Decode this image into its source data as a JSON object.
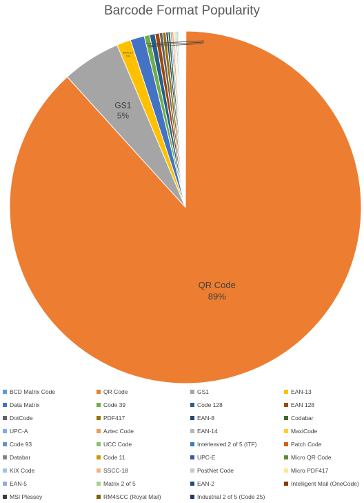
{
  "chart_data": {
    "type": "pie",
    "title": "Barcode Format Popularity",
    "slices": [
      {
        "label": "BCD Matrix Code",
        "value": 0.05,
        "color": "#5B9BD5"
      },
      {
        "label": "QR Code",
        "value": 88.6,
        "color": "#ED7D31"
      },
      {
        "label": "GS1",
        "value": 5.4,
        "color": "#A5A5A5"
      },
      {
        "label": "EAN-13",
        "value": 1.3,
        "color": "#FFC000"
      },
      {
        "label": "Data Matrix",
        "value": 1.3,
        "color": "#4472C4"
      },
      {
        "label": "Code 39",
        "value": 0.5,
        "color": "#70AD47"
      },
      {
        "label": "Code 128",
        "value": 0.5,
        "color": "#255E91"
      },
      {
        "label": "EAN 128",
        "value": 0.4,
        "color": "#9E480E"
      },
      {
        "label": "DotCode",
        "value": 0.3,
        "color": "#636363"
      },
      {
        "label": "PDF417",
        "value": 0.3,
        "color": "#997300"
      },
      {
        "label": "EAN-8",
        "value": 0.2,
        "color": "#264478"
      },
      {
        "label": "Codabar",
        "value": 0.2,
        "color": "#43682B"
      },
      {
        "label": "UPC-A",
        "value": 0.15,
        "color": "#7CAFDD"
      },
      {
        "label": "Aztec Code",
        "value": 0.15,
        "color": "#F1975A"
      },
      {
        "label": "EAN-14",
        "value": 0.1,
        "color": "#B7B7B7"
      },
      {
        "label": "MaxiCode",
        "value": 0.1,
        "color": "#FFCD33"
      },
      {
        "label": "Code 93",
        "value": 0.1,
        "color": "#698ED0"
      },
      {
        "label": "UCC Code",
        "value": 0.1,
        "color": "#8CC168"
      },
      {
        "label": "Interleaved 2 of 5 (ITF)",
        "value": 0.08,
        "color": "#327DC2"
      },
      {
        "label": "Patch Code",
        "value": 0.06,
        "color": "#D26012"
      },
      {
        "label": "Databar",
        "value": 0.06,
        "color": "#848484"
      },
      {
        "label": "Code 11",
        "value": 0.05,
        "color": "#CC9A00"
      },
      {
        "label": "UPC-E",
        "value": 0.05,
        "color": "#335AA1"
      },
      {
        "label": "Micro QR Code",
        "value": 0.05,
        "color": "#5A8A39"
      },
      {
        "label": "KIX Code",
        "value": 0.04,
        "color": "#9DC3E6"
      },
      {
        "label": "SSCC-18",
        "value": 0.04,
        "color": "#F4B183"
      },
      {
        "label": "PostNet Code",
        "value": 0.04,
        "color": "#C9C9C9"
      },
      {
        "label": "Micro PDF417",
        "value": 0.04,
        "color": "#FFE699"
      },
      {
        "label": "EAN-5",
        "value": 0.03,
        "color": "#8FAADC"
      },
      {
        "label": "Matrix 2 of 5",
        "value": 0.03,
        "color": "#A9D18E"
      },
      {
        "label": "EAN-2",
        "value": 0.03,
        "color": "#1F4E79"
      },
      {
        "label": "Intelligent Mail (OneCode)",
        "value": 0.03,
        "color": "#843C0C"
      },
      {
        "label": "MSI Plessey",
        "value": 0.02,
        "color": "#3A3A3A"
      },
      {
        "label": "RM4SCC (Royal Mail)",
        "value": 0.02,
        "color": "#7F6000"
      },
      {
        "label": "Industrial 2 of 5 (Code 25)",
        "value": 0.02,
        "color": "#203864"
      }
    ],
    "data_labels": [
      {
        "slice": "QR Code",
        "name": "QR Code",
        "percent": "89%"
      },
      {
        "slice": "GS1",
        "name": "GS1",
        "percent": "5%"
      },
      {
        "slice": "EAN-13",
        "name": "EAN-13",
        "percent": "1%"
      }
    ],
    "legend_position": "bottom"
  }
}
